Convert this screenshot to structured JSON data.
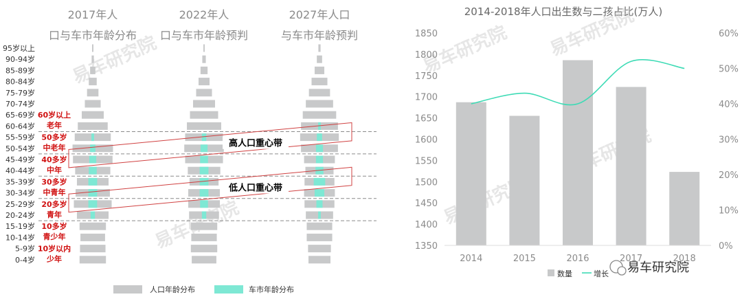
{
  "chart_data": [
    {
      "type": "bar",
      "subtype": "population-pyramid",
      "titles": [
        "2017年人口与车市年龄分布",
        "2022年人口与车市年龄预判",
        "2027年人口与车市年龄预判"
      ],
      "age_groups": [
        "95岁以上",
        "90-94岁",
        "85-89岁",
        "80-84岁",
        "75-79岁",
        "70-74岁",
        "65-69岁",
        "60-64岁",
        "55-59岁",
        "50-54岁",
        "45-49岁",
        "40-44岁",
        "35-39岁",
        "30-34岁",
        "25-29岁",
        "20-24岁",
        "15-19岁",
        "10-14岁",
        "5-9岁",
        "0-4岁"
      ],
      "series_names": [
        "人口年龄分布",
        "车市年龄分布"
      ],
      "population": [
        [
          0.02,
          0.05,
          0.12,
          0.18,
          0.26,
          0.36,
          0.5,
          0.68,
          0.82,
          0.92,
          0.9,
          0.8,
          0.72,
          0.78,
          0.86,
          0.72,
          0.6,
          0.56,
          0.58,
          0.6
        ],
        [
          0.03,
          0.08,
          0.16,
          0.25,
          0.36,
          0.5,
          0.64,
          0.78,
          0.86,
          0.9,
          0.86,
          0.74,
          0.66,
          0.72,
          0.72,
          0.68,
          0.6,
          0.58,
          0.6,
          0.56
        ],
        [
          0.05,
          0.12,
          0.22,
          0.36,
          0.48,
          0.62,
          0.76,
          0.84,
          0.88,
          0.84,
          0.7,
          0.64,
          0.68,
          0.7,
          0.68,
          0.62,
          0.58,
          0.58,
          0.52,
          0.5
        ]
      ],
      "car_market": [
        [
          0,
          0,
          0,
          0,
          0,
          0,
          0,
          0,
          0.06,
          0.12,
          0.16,
          0.18,
          0.2,
          0.2,
          0.2,
          0.1,
          0,
          0,
          0,
          0
        ],
        [
          0,
          0,
          0,
          0,
          0,
          0,
          0,
          0,
          0.1,
          0.16,
          0.18,
          0.2,
          0.2,
          0.2,
          0.18,
          0.1,
          0,
          0,
          0,
          0
        ],
        [
          0,
          0,
          0,
          0,
          0,
          0,
          0,
          0.06,
          0.12,
          0.16,
          0.16,
          0.18,
          0.26,
          0.22,
          0.14,
          0.06,
          0,
          0,
          0,
          0
        ]
      ],
      "group_labels": [
        {
          "line1": "60岁以上",
          "line2": "老年",
          "age": "65-69岁"
        },
        {
          "line1": "50多岁",
          "line2": "中老年",
          "age": "55-59岁"
        },
        {
          "line1": "40多岁",
          "line2": "中年",
          "age": "45-49岁"
        },
        {
          "line1": "30多岁",
          "line2": "中青年",
          "age": "35-39岁"
        },
        {
          "line1": "20多岁",
          "line2": "青年",
          "age": "25-29岁"
        },
        {
          "line1": "10多岁",
          "line2": "青少年",
          "age": "15-19岁"
        },
        {
          "line1": "10岁以内",
          "line2": "少年",
          "age": "5-9岁"
        }
      ],
      "bands": [
        {
          "label": "高人口重心带",
          "ages": [
            "55-59岁",
            "50-54岁"
          ]
        },
        {
          "label": "低人口重心带",
          "ages": [
            "35-39岁",
            "30-34岁"
          ]
        }
      ]
    },
    {
      "type": "bar",
      "title": "2014-2018年人口出生数与二孩占比(万人)",
      "categories": [
        "2014",
        "2015",
        "2016",
        "2017",
        "2018"
      ],
      "series": [
        {
          "name": "数量",
          "type": "bar",
          "values": [
            1687,
            1655,
            1786,
            1723,
            1523
          ],
          "color": "#c8c9ca"
        },
        {
          "name": "增长",
          "type": "line",
          "axis": "right",
          "values": [
            0.4,
            0.43,
            0.4,
            0.52,
            0.5
          ],
          "color": "#3ddbb5"
        }
      ],
      "ylim": [
        1350,
        1850
      ],
      "yticks": [
        "1350",
        "1400",
        "1450",
        "1500",
        "1550",
        "1600",
        "1650",
        "1700",
        "1750",
        "1800",
        "1850"
      ],
      "y2lim": [
        0,
        0.6
      ],
      "y2ticks": [
        "0%",
        "10%",
        "20%",
        "30%",
        "40%",
        "50%",
        "60%"
      ],
      "legend_position": "bottom"
    }
  ],
  "watermark": "易车研究院",
  "colors": {
    "population": "#c8c9ca",
    "car": "#7ee8d4",
    "label_red": "#d01010",
    "band_red": "#d04040",
    "line": "#3ddbb5"
  }
}
